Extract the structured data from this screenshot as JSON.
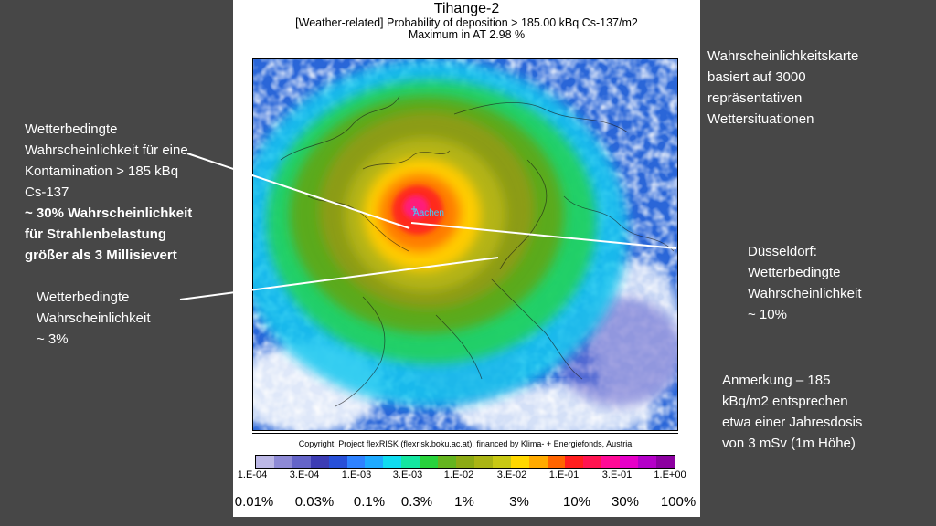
{
  "map": {
    "title": "Tihange-2",
    "subtitle": "[Weather-related] Probability of deposition > 185.00 kBq Cs-137/m2",
    "maximum": "Maximum in AT   2.98 %",
    "city_label": "Aachen",
    "copyright": "Copyright: Project flexRISK (flexrisk.boku.ac.at), financed by Klima- + Energiefonds, Austria"
  },
  "legend": {
    "colors": [
      "#bcb8e6",
      "#8e8ad6",
      "#6464c8",
      "#3c3cb4",
      "#2850d8",
      "#2e82ff",
      "#1eaaff",
      "#10dcf0",
      "#14e6a0",
      "#28d23c",
      "#64b41e",
      "#8caa14",
      "#aab414",
      "#c8c814",
      "#ffd700",
      "#ffaa00",
      "#ff6400",
      "#ff1e1e",
      "#ff1450",
      "#ff0a96",
      "#e600c8",
      "#b400c8",
      "#8c00a0"
    ],
    "ticks": [
      "1.E-04",
      "3.E-04",
      "1.E-03",
      "3.E-03",
      "1.E-02",
      "3.E-02",
      "1.E-01",
      "3.E-01",
      "1.E+00"
    ],
    "percent": [
      "0.01%",
      "0.03%",
      "0.1%",
      "0.3%",
      "1%",
      "3%",
      "10%",
      "30%",
      "100%"
    ]
  },
  "notes": {
    "top_right": [
      "Wahrscheinlichkeitskarte",
      "basiert auf 3000",
      "repräsentativen",
      "Wettersituationen"
    ],
    "left_top": [
      "Wetterbedingte",
      "Wahrscheinlichkeit für eine",
      "Kontamination > 185 kBq",
      "Cs-137"
    ],
    "left_top_bold": [
      "~ 30% Wahrscheinlichkeit",
      "für Strahlenbelastung",
      "größer als 3 Millisievert"
    ],
    "left_bottom": [
      "Wetterbedingte",
      "Wahrscheinlichkeit",
      "~ 3%"
    ],
    "right_mid": [
      "Düsseldorf:",
      "Wetterbedingte",
      "Wahrscheinlichkeit",
      "~ 10%"
    ],
    "bottom_right": [
      "Anmerkung – 185",
      "kBq/m2 entsprechen",
      "etwa einer Jahresdosis",
      "von 3 mSv (1m Höhe)"
    ]
  }
}
